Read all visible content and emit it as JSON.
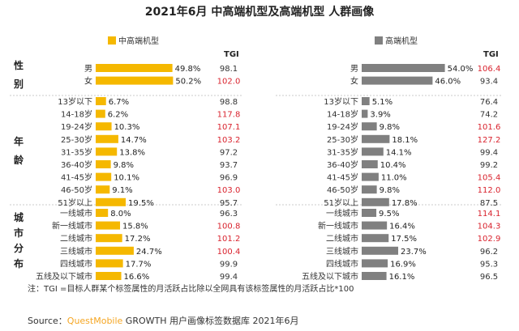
{
  "title": "2021年6月 中高端机型及高端机型 人群画像",
  "legend": {
    "mid_high": {
      "label": "中高端机型",
      "color": "#f5b800"
    },
    "high": {
      "label": "高端机型",
      "color": "#808080"
    }
  },
  "tgi_header": "TGI",
  "section_labels": {
    "gender": [
      "性",
      "别"
    ],
    "age": [
      "年",
      "龄"
    ],
    "city": [
      "城",
      "市",
      "分",
      "布"
    ]
  },
  "note": "注：TGI =目标人群某个标签属性的月活跃占比除以全网具有该标签属性的月活跃占比*100",
  "source": {
    "prefix": "Source：",
    "brand": "QuestMobile",
    "suffix": " GROWTH 用户画像标签数据库 2021年6月"
  },
  "colors": {
    "tgi_high": "#d9232e",
    "tgi_normal": "#333333"
  },
  "chart_data": [
    {
      "type": "bar",
      "series": [
        {
          "name": "中高端机型",
          "color": "#f5b800"
        }
      ],
      "groups": [
        {
          "name": "性别",
          "categories": [
            "男",
            "女"
          ],
          "values": [
            49.8,
            50.2
          ],
          "labels": [
            "49.8%",
            "50.2%"
          ],
          "tgi": [
            98.1,
            102.0
          ]
        },
        {
          "name": "年龄",
          "categories": [
            "13岁以下",
            "14-18岁",
            "19-24岁",
            "25-30岁",
            "31-35岁",
            "36-40岁",
            "41-45岁",
            "46-50岁",
            "51岁以上"
          ],
          "values": [
            6.7,
            6.2,
            10.3,
            14.7,
            13.8,
            9.8,
            10.1,
            9.1,
            19.5
          ],
          "labels": [
            "6.7%",
            "6.2%",
            "10.3%",
            "14.7%",
            "13.8%",
            "9.8%",
            "10.1%",
            "9.1%",
            "19.5%"
          ],
          "tgi": [
            98.8,
            117.8,
            107.1,
            103.2,
            97.2,
            93.7,
            96.9,
            103.0,
            95.7
          ]
        },
        {
          "name": "城市分布",
          "categories": [
            "一线城市",
            "新一线城市",
            "二线城市",
            "三线城市",
            "四线城市",
            "五线及以下城市"
          ],
          "values": [
            8.0,
            15.8,
            17.2,
            24.7,
            17.7,
            16.6
          ],
          "labels": [
            "8.0%",
            "15.8%",
            "17.2%",
            "24.7%",
            "17.7%",
            "16.6%"
          ],
          "tgi": [
            96.3,
            100.8,
            101.2,
            100.4,
            99.9,
            99.4
          ]
        }
      ]
    },
    {
      "type": "bar",
      "series": [
        {
          "name": "高端机型",
          "color": "#808080"
        }
      ],
      "groups": [
        {
          "name": "性别",
          "categories": [
            "男",
            "女"
          ],
          "values": [
            54.0,
            46.0
          ],
          "labels": [
            "54.0%",
            "46.0%"
          ],
          "tgi": [
            106.4,
            93.4
          ]
        },
        {
          "name": "年龄",
          "categories": [
            "13岁以下",
            "14-18岁",
            "19-24岁",
            "25-30岁",
            "31-35岁",
            "36-40岁",
            "41-45岁",
            "46-50岁",
            "51岁以上"
          ],
          "values": [
            5.1,
            3.9,
            9.8,
            18.1,
            14.1,
            10.4,
            11.0,
            9.8,
            17.8
          ],
          "labels": [
            "5.1%",
            "3.9%",
            "9.8%",
            "18.1%",
            "14.1%",
            "10.4%",
            "11.0%",
            "9.8%",
            "17.8%"
          ],
          "tgi": [
            76.4,
            74.2,
            101.6,
            127.2,
            99.4,
            99.2,
            105.4,
            112.0,
            87.5
          ]
        },
        {
          "name": "城市分布",
          "categories": [
            "一线城市",
            "新一线城市",
            "二线城市",
            "三线城市",
            "四线城市",
            "五线及以下城市"
          ],
          "values": [
            9.5,
            16.4,
            17.5,
            23.7,
            16.9,
            16.1
          ],
          "labels": [
            "9.5%",
            "16.4%",
            "17.5%",
            "23.7%",
            "16.9%",
            "16.1%"
          ],
          "tgi": [
            114.1,
            104.3,
            102.9,
            96.2,
            95.3,
            96.5
          ]
        }
      ]
    }
  ]
}
